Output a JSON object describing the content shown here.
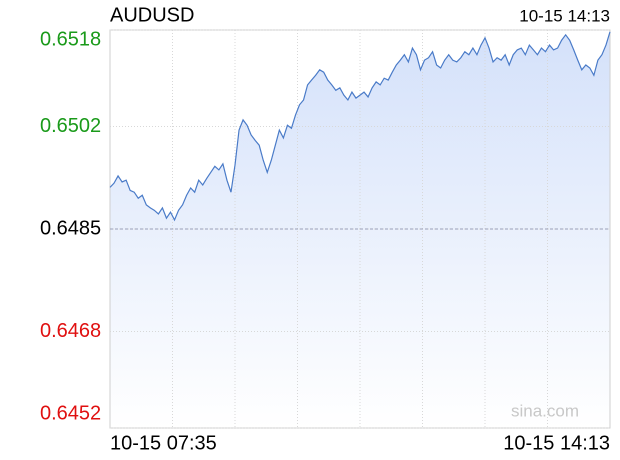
{
  "chart_data": {
    "type": "line",
    "title": "AUDUSD",
    "time": "10-15 14:13",
    "watermark": "sina.com",
    "categories": [
      "10-15 07:35",
      null,
      null,
      null,
      null,
      null,
      null,
      null,
      null,
      null,
      null,
      null,
      null,
      null,
      null,
      null,
      null,
      null,
      null,
      null,
      null,
      null,
      null,
      null,
      null,
      null,
      null,
      null,
      null,
      null,
      null,
      null,
      null,
      null,
      null,
      null,
      null,
      null,
      null,
      null,
      null,
      null,
      null,
      null,
      null,
      null,
      null,
      null,
      null,
      null,
      null,
      null,
      null,
      null,
      null,
      null,
      null,
      null,
      null,
      null,
      null,
      null,
      null,
      null,
      null,
      null,
      null,
      null,
      null,
      null,
      null,
      null,
      null,
      null,
      null,
      null,
      null,
      null,
      null,
      null,
      null,
      null,
      null,
      null,
      null,
      null,
      null,
      null,
      null,
      null,
      null,
      null,
      null,
      null,
      null,
      null,
      null,
      null,
      null,
      null,
      null,
      null,
      null,
      null,
      null,
      null,
      null,
      null,
      null,
      null,
      null,
      null,
      null,
      null,
      null,
      null,
      null,
      null,
      null,
      null,
      null,
      null,
      null,
      null,
      "10-15 14:13"
    ],
    "values": [
      0.64919,
      0.64926,
      0.64938,
      0.64928,
      0.64931,
      0.64914,
      0.64911,
      0.64901,
      0.64906,
      0.6489,
      0.64885,
      0.64881,
      0.64875,
      0.64885,
      0.64868,
      0.64878,
      0.64865,
      0.64881,
      0.6489,
      0.64906,
      0.64918,
      0.64911,
      0.64931,
      0.64923,
      0.64934,
      0.64944,
      0.64954,
      0.64948,
      0.64958,
      0.64931,
      0.64911,
      0.64956,
      0.65014,
      0.65031,
      0.65022,
      0.65006,
      0.64997,
      0.64989,
      0.64964,
      0.64944,
      0.64964,
      0.64989,
      0.65014,
      0.65001,
      0.65022,
      0.65017,
      0.65039,
      0.65056,
      0.65064,
      0.65089,
      0.65097,
      0.65105,
      0.65114,
      0.6511,
      0.65097,
      0.65089,
      0.6508,
      0.65084,
      0.65072,
      0.65064,
      0.65077,
      0.65067,
      0.65072,
      0.65077,
      0.65069,
      0.65084,
      0.65094,
      0.65089,
      0.651,
      0.65097,
      0.6511,
      0.65122,
      0.6513,
      0.65139,
      0.65127,
      0.6515,
      0.65139,
      0.65114,
      0.6513,
      0.65134,
      0.65144,
      0.65122,
      0.65117,
      0.6513,
      0.65139,
      0.6513,
      0.65127,
      0.65134,
      0.65144,
      0.65139,
      0.6515,
      0.65139,
      0.65155,
      0.65167,
      0.6515,
      0.65127,
      0.65134,
      0.6513,
      0.65139,
      0.65122,
      0.65139,
      0.65147,
      0.6515,
      0.65139,
      0.65155,
      0.65147,
      0.65139,
      0.6515,
      0.65144,
      0.65155,
      0.65147,
      0.6515,
      0.65163,
      0.65172,
      0.65163,
      0.65147,
      0.6513,
      0.65114,
      0.65122,
      0.65117,
      0.65105,
      0.6513,
      0.65139,
      0.65155,
      0.65177
    ],
    "color": "#4a7bc8",
    "fill_color": "#dbe6fb",
    "ylim": [
      0.6452,
      0.6518
    ],
    "yticks": [
      0.6452,
      0.6468,
      0.6485,
      0.6502,
      0.6518
    ],
    "baseline": 0.6485,
    "up_color": "#1a9a1a",
    "down_color": "#e01010",
    "flat_color": "#000000",
    "grid": true
  }
}
